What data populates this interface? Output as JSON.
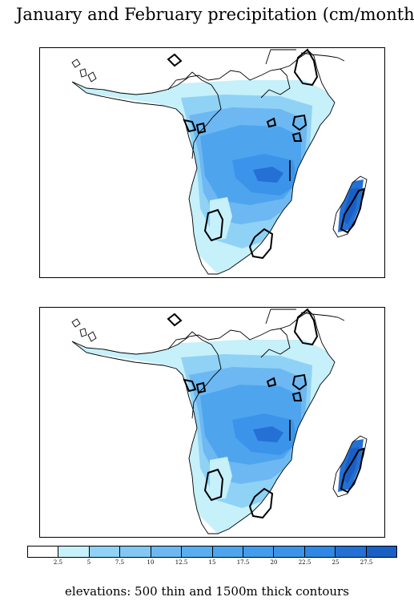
{
  "title": "January and February precipitation (cm/month)",
  "caption": "elevations: 500 thin and 1500m thick contours",
  "colorbar": {
    "ticks": [
      "2.5",
      "5",
      "7.5",
      "10",
      "12.5",
      "15",
      "17.5",
      "20",
      "22.5",
      "25",
      "27.5"
    ],
    "colors": [
      "#ffffff",
      "#c6f0fa",
      "#8fd2f5",
      "#82c8f5",
      "#6db8f2",
      "#5aaef0",
      "#4ea5ee",
      "#449ced",
      "#3b94ea",
      "#2f88e3",
      "#2470d4",
      "#1a5fc4"
    ]
  },
  "colors": {
    "land_outline": "#000000",
    "panel_background": "#ffffff"
  },
  "panels": [
    "top",
    "bottom"
  ]
}
